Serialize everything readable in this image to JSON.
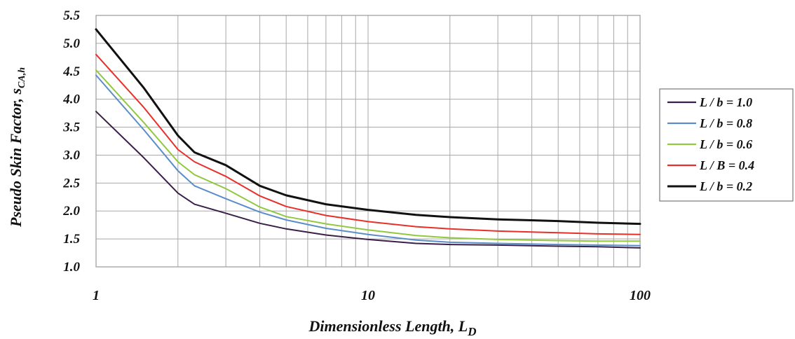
{
  "chart_data": {
    "type": "line",
    "title": "",
    "xlabel": "Dimensionless Length, L",
    "xlabel_subscript": "D",
    "ylabel": "Pseudo Skin Factor, s",
    "ylabel_subscript": "CA,h",
    "x_scale": "log",
    "xlim": [
      1,
      100
    ],
    "ylim": [
      1.0,
      5.5
    ],
    "x_ticks": [
      1,
      10,
      100
    ],
    "x_tick_labels": [
      "1",
      "10",
      "100"
    ],
    "y_ticks": [
      1.0,
      1.5,
      2.0,
      2.5,
      3.0,
      3.5,
      4.0,
      4.5,
      5.0,
      5.5
    ],
    "y_tick_labels": [
      "1.0",
      "1.5",
      "2.0",
      "2.5",
      "3.0",
      "3.5",
      "4.0",
      "4.5",
      "5.0",
      "5.5"
    ],
    "grid": true,
    "legend_position": "right",
    "x": [
      1,
      1.5,
      2,
      2.3,
      3,
      4,
      5,
      7,
      10,
      15,
      20,
      30,
      50,
      70,
      100
    ],
    "series": [
      {
        "name": "L / b = 1.0",
        "color": "#3a1f4a",
        "values": [
          3.78,
          2.95,
          2.32,
          2.12,
          1.96,
          1.78,
          1.68,
          1.57,
          1.49,
          1.42,
          1.4,
          1.39,
          1.37,
          1.36,
          1.34
        ]
      },
      {
        "name": "L / b = 0.8",
        "color": "#5b8ec9",
        "values": [
          4.43,
          3.45,
          2.72,
          2.45,
          2.22,
          1.98,
          1.84,
          1.69,
          1.58,
          1.48,
          1.44,
          1.42,
          1.4,
          1.39,
          1.38
        ]
      },
      {
        "name": "L / b = 0.6",
        "color": "#92c83e",
        "values": [
          4.52,
          3.58,
          2.88,
          2.65,
          2.4,
          2.07,
          1.9,
          1.77,
          1.66,
          1.56,
          1.52,
          1.49,
          1.47,
          1.46,
          1.46
        ]
      },
      {
        "name": "L / B = 0.4",
        "color": "#e8302a",
        "values": [
          4.8,
          3.85,
          3.1,
          2.88,
          2.62,
          2.27,
          2.08,
          1.92,
          1.81,
          1.72,
          1.68,
          1.64,
          1.61,
          1.59,
          1.58
        ]
      },
      {
        "name": "L / b = 0.2",
        "color": "#111111",
        "values": [
          5.25,
          4.2,
          3.35,
          3.05,
          2.82,
          2.45,
          2.28,
          2.12,
          2.02,
          1.93,
          1.89,
          1.85,
          1.82,
          1.79,
          1.77
        ]
      }
    ]
  }
}
